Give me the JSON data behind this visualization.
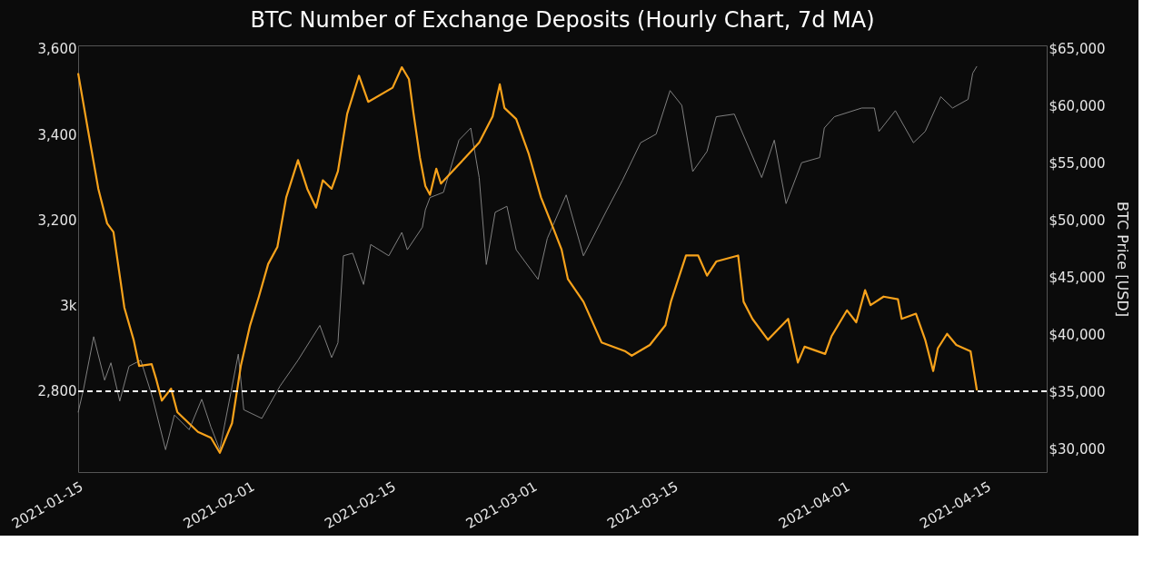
{
  "chart_data": {
    "type": "line",
    "title": "BTC Number of Exchange Deposits (Hourly Chart, 7d MA)",
    "y2label": "BTC Price [USD]",
    "xlim": [
      "2021-01-15",
      "2021-04-21"
    ],
    "xticks": [
      "2021-01-15",
      "2021-02-01",
      "2021-02-15",
      "2021-03-01",
      "2021-03-15",
      "2021-04-01",
      "2021-04-15"
    ],
    "ylim": [
      2611,
      3608
    ],
    "yticks": [
      {
        "value": 2800,
        "label": "2,800"
      },
      {
        "value": 3000,
        "label": "3k"
      },
      {
        "value": 3200,
        "label": "3,200"
      },
      {
        "value": 3400,
        "label": "3,400"
      },
      {
        "value": 3600,
        "label": "3,600"
      }
    ],
    "y2lim": [
      27945,
      65304
    ],
    "y2ticks": [
      {
        "value": 30000,
        "label": "$30,000"
      },
      {
        "value": 35000,
        "label": "$35,000"
      },
      {
        "value": 40000,
        "label": "$40,000"
      },
      {
        "value": 45000,
        "label": "$45,000"
      },
      {
        "value": 50000,
        "label": "$50,000"
      },
      {
        "value": 55000,
        "label": "$55,000"
      },
      {
        "value": 60000,
        "label": "$60,000"
      },
      {
        "value": 65000,
        "label": "$65,000"
      }
    ],
    "grid": false,
    "marker": "none",
    "ref_lines": [
      {
        "axis": "y",
        "value": 2800,
        "color": "#ffffff",
        "line_style": "dashed"
      }
    ],
    "series": [
      {
        "color": "#808080",
        "axis": "y2",
        "line_style": "solid",
        "x": [
          "2021-01-15T00:00",
          "2021-01-15T13:00",
          "2021-01-16T13:00",
          "2021-01-17T15:00",
          "2021-01-18T06:00",
          "2021-01-19T03:00",
          "2021-01-20T01:00",
          "2021-01-21T05:00",
          "2021-01-22T09:00",
          "2021-01-23T16:00",
          "2021-01-24T13:00",
          "2021-01-26T00:00",
          "2021-01-27T06:00",
          "2021-01-28T04:00",
          "2021-01-29T01:00",
          "2021-01-30T21:00",
          "2021-01-31T10:00",
          "2021-02-02T05:00",
          "2021-02-04T00:00",
          "2021-02-05T19:00",
          "2021-02-07T23:00",
          "2021-02-09T03:00",
          "2021-02-09T18:00",
          "2021-02-10T07:00",
          "2021-02-11T05:00",
          "2021-02-12T07:00",
          "2021-02-13T00:00",
          "2021-02-14T19:00",
          "2021-02-16T02:00",
          "2021-02-16T15:00",
          "2021-02-18T03:00",
          "2021-02-18T10:00",
          "2021-02-18T21:00",
          "2021-02-20T05:00",
          "2021-02-21T18:00",
          "2021-02-22T22:00",
          "2021-02-23T18:00",
          "2021-02-24T11:00",
          "2021-02-25T08:00",
          "2021-02-26T12:00",
          "2021-02-27T10:00",
          "2021-03-01T14:00",
          "2021-03-02T12:00",
          "2021-03-04T09:00",
          "2021-03-06T02:00",
          "2021-03-08T10:00",
          "2021-03-09T23:00",
          "2021-03-11T18:00",
          "2021-03-13T07:00",
          "2021-03-14T16:00",
          "2021-03-15T20:00",
          "2021-03-16T22:00",
          "2021-03-18T08:00",
          "2021-03-19T06:00",
          "2021-03-21T01:00",
          "2021-03-23T18:00",
          "2021-03-25T00:00",
          "2021-03-26T04:00",
          "2021-03-27T17:00",
          "2021-03-29T12:00",
          "2021-03-29T23:00",
          "2021-03-30T23:00",
          "2021-04-02T16:00",
          "2021-04-03T22:00",
          "2021-04-04T09:00",
          "2021-04-06T00:00",
          "2021-04-07T19:00",
          "2021-04-08T23:00",
          "2021-04-10T12:00",
          "2021-04-11T16:00",
          "2021-04-13T05:00",
          "2021-04-13T16:00",
          "2021-04-14T02:00"
        ],
        "values": [
          33170,
          35230,
          39800,
          35990,
          37510,
          34160,
          37210,
          37740,
          34470,
          29900,
          32940,
          31650,
          34320,
          31880,
          29900,
          38270,
          33400,
          32640,
          35460,
          37740,
          40790,
          37970,
          39260,
          46880,
          47110,
          44370,
          47870,
          46880,
          48930,
          47410,
          49390,
          50910,
          51980,
          52440,
          57010,
          58070,
          53730,
          46120,
          50690,
          51220,
          47410,
          44820,
          48400,
          52210,
          46880,
          50910,
          53500,
          56780,
          57540,
          61350,
          60050,
          54260,
          56020,
          59060,
          59290,
          53730,
          57010,
          51450,
          55030,
          55480,
          58070,
          59060,
          59820,
          59820,
          57770,
          59590,
          56780,
          57770,
          60810,
          59820,
          60580,
          62870,
          63480
        ]
      },
      {
        "color": "#f7a21b",
        "axis": "y",
        "line_style": "solid",
        "x": [
          "2021-01-15T00:00",
          "2021-01-16T00:00",
          "2021-01-17T00:00",
          "2021-01-17T21:00",
          "2021-01-18T12:00",
          "2021-01-19T14:00",
          "2021-01-20T12:00",
          "2021-01-21T01:00",
          "2021-01-22T07:00",
          "2021-01-22T18:00",
          "2021-01-23T07:00",
          "2021-01-24T05:00",
          "2021-01-24T20:00",
          "2021-01-26T21:00",
          "2021-01-28T04:00",
          "2021-01-29T01:00",
          "2021-01-30T06:00",
          "2021-01-31T03:00",
          "2021-02-01T01:00",
          "2021-02-01T22:00",
          "2021-02-02T20:00",
          "2021-02-03T18:00",
          "2021-02-04T15:00",
          "2021-02-05T19:00",
          "2021-02-06T17:00",
          "2021-02-07T14:00",
          "2021-02-08T06:00",
          "2021-02-09T03:00",
          "2021-02-09T18:00",
          "2021-02-10T16:00",
          "2021-02-11T20:00",
          "2021-02-12T18:00",
          "2021-02-15T04:00",
          "2021-02-16T02:00",
          "2021-02-16T19:00",
          "2021-02-17T06:00",
          "2021-02-17T21:00",
          "2021-02-18T10:00",
          "2021-02-18T21:00",
          "2021-02-19T12:00",
          "2021-02-19T23:00",
          "2021-02-22T09:00",
          "2021-02-23T18:00",
          "2021-02-25T02:00",
          "2021-02-25T19:00",
          "2021-02-26T06:00",
          "2021-02-27T10:00",
          "2021-02-28T16:00",
          "2021-03-01T21:00",
          "2021-03-03T01:00",
          "2021-03-03T22:00",
          "2021-03-04T13:00",
          "2021-03-06T02:00",
          "2021-03-07T21:00",
          "2021-03-10T06:00",
          "2021-03-10T21:00",
          "2021-03-12T16:00",
          "2021-03-14T05:00",
          "2021-03-14T18:00",
          "2021-03-16T06:00",
          "2021-03-17T11:00",
          "2021-03-18T08:00",
          "2021-03-19T06:00",
          "2021-03-21T10:00",
          "2021-03-21T23:00",
          "2021-03-22T20:00",
          "2021-03-24T09:00",
          "2021-03-26T09:00",
          "2021-03-27T08:00",
          "2021-03-28T00:00",
          "2021-03-30T01:00",
          "2021-03-30T16:00",
          "2021-04-01T05:00",
          "2021-04-02T03:00",
          "2021-04-03T00:00",
          "2021-04-03T13:00",
          "2021-04-04T20:00",
          "2021-04-06T06:00",
          "2021-04-06T15:00",
          "2021-04-08T01:00",
          "2021-04-08T23:00",
          "2021-04-09T18:00",
          "2021-04-10T05:00",
          "2021-04-11T03:00",
          "2021-04-12T01:00",
          "2021-04-13T11:00",
          "2021-04-14T02:00"
        ],
        "values": [
          3543,
          3407,
          3273,
          3192,
          3172,
          2995,
          2920,
          2859,
          2863,
          2827,
          2778,
          2806,
          2751,
          2705,
          2691,
          2656,
          2725,
          2859,
          2954,
          3021,
          3097,
          3137,
          3253,
          3340,
          3273,
          3229,
          3293,
          3273,
          3314,
          3448,
          3537,
          3476,
          3509,
          3557,
          3529,
          3448,
          3346,
          3279,
          3259,
          3320,
          3285,
          3346,
          3381,
          3442,
          3517,
          3462,
          3436,
          3354,
          3253,
          3184,
          3131,
          3062,
          3009,
          2914,
          2893,
          2883,
          2908,
          2954,
          3009,
          3117,
          3117,
          3070,
          3103,
          3117,
          3009,
          2969,
          2920,
          2969,
          2867,
          2904,
          2887,
          2928,
          2989,
          2961,
          3036,
          3001,
          3021,
          3015,
          2969,
          2981,
          2920,
          2847,
          2900,
          2934,
          2908,
          2893,
          2802
        ]
      }
    ]
  }
}
